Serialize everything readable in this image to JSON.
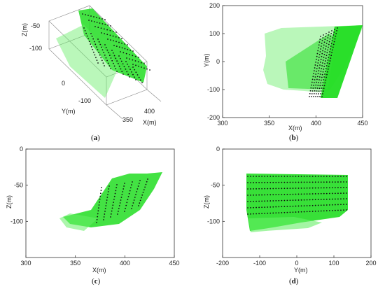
{
  "colors": {
    "cloud": "#22dd22",
    "cloud_light": "#66ee66",
    "track": "#111111",
    "axis": "#333333"
  },
  "captions": [
    "a",
    "b",
    "c",
    "d"
  ],
  "chart_data": [
    {
      "panel": "a",
      "type": "scatter",
      "view": "3d",
      "xlabel": "X(m)",
      "ylabel": "Y(m)",
      "zlabel": "Z(m)",
      "xticks": [
        "350",
        "400"
      ],
      "yticks": [
        "0",
        "-100"
      ],
      "zticks": [
        "-50",
        "-100"
      ],
      "series": []
    },
    {
      "panel": "b",
      "type": "scatter",
      "xlabel": "X(m)",
      "ylabel": "Y(m)",
      "xlim": [
        300,
        450
      ],
      "ylim": [
        -200,
        200
      ],
      "xticks": [
        "300",
        "350",
        "400",
        "450"
      ],
      "yticks": [
        "200",
        "100",
        "0",
        "-100",
        "-200"
      ],
      "series": []
    },
    {
      "panel": "c",
      "type": "scatter",
      "xlabel": "X(m)",
      "ylabel": "Z(m)",
      "xlim": [
        300,
        450
      ],
      "ylim": [
        -150,
        0
      ],
      "xticks": [
        "300",
        "350",
        "400",
        "450"
      ],
      "yticks": [
        "0",
        "-50",
        "-100"
      ],
      "series": []
    },
    {
      "panel": "d",
      "type": "scatter",
      "xlabel": "Y(m)",
      "ylabel": "Z(m)",
      "xlim": [
        -200,
        200
      ],
      "ylim": [
        -150,
        0
      ],
      "xticks": [
        "-200",
        "-100",
        "0",
        "100",
        "200"
      ],
      "yticks": [
        "0",
        "-50",
        "-100"
      ],
      "series": []
    }
  ]
}
